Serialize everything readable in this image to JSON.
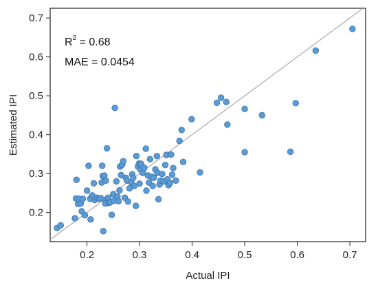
{
  "chart_data": {
    "type": "scatter",
    "xlabel": "Actual IPI",
    "ylabel": "Estimated IPI",
    "xlim": [
      0.13,
      0.73
    ],
    "ylim": [
      0.125,
      0.725
    ],
    "xticks": [
      0.2,
      0.3,
      0.4,
      0.5,
      0.6,
      0.7
    ],
    "yticks": [
      0.2,
      0.3,
      0.4,
      0.5,
      0.6,
      0.7
    ],
    "xtick_labels": [
      "0.2",
      "0.3",
      "0.4",
      "0.5",
      "0.6",
      "0.7"
    ],
    "ytick_labels": [
      "0.2",
      "0.3",
      "0.4",
      "0.5",
      "0.6",
      "0.7"
    ],
    "reference_line": "y = x",
    "grid": false,
    "marker_color": "#5b9bd5",
    "marker_edge_color": "#3a72a8",
    "line_color": "#9a9a9a",
    "annotations": {
      "r2_prefix": "R",
      "r2_superscript": "2",
      "r2_value": " = 0.68",
      "mae": "MAE = 0.0454"
    },
    "points": [
      [
        0.143,
        0.16
      ],
      [
        0.15,
        0.167
      ],
      [
        0.177,
        0.185
      ],
      [
        0.179,
        0.236
      ],
      [
        0.18,
        0.284
      ],
      [
        0.183,
        0.222
      ],
      [
        0.185,
        0.235
      ],
      [
        0.188,
        0.223
      ],
      [
        0.19,
        0.203
      ],
      [
        0.192,
        0.235
      ],
      [
        0.196,
        0.193
      ],
      [
        0.2,
        0.256
      ],
      [
        0.203,
        0.32
      ],
      [
        0.206,
        0.235
      ],
      [
        0.207,
        0.182
      ],
      [
        0.21,
        0.244
      ],
      [
        0.213,
        0.275
      ],
      [
        0.215,
        0.232
      ],
      [
        0.219,
        0.238
      ],
      [
        0.223,
        0.235
      ],
      [
        0.226,
        0.237
      ],
      [
        0.228,
        0.277
      ],
      [
        0.229,
        0.32
      ],
      [
        0.23,
        0.294
      ],
      [
        0.231,
        0.152
      ],
      [
        0.233,
        0.295
      ],
      [
        0.234,
        0.232
      ],
      [
        0.235,
        0.223
      ],
      [
        0.236,
        0.282
      ],
      [
        0.238,
        0.365
      ],
      [
        0.24,
        0.238
      ],
      [
        0.242,
        0.225
      ],
      [
        0.244,
        0.226
      ],
      [
        0.247,
        0.194
      ],
      [
        0.25,
        0.247
      ],
      [
        0.251,
        0.23
      ],
      [
        0.253,
        0.469
      ],
      [
        0.256,
        0.28
      ],
      [
        0.258,
        0.241
      ],
      [
        0.26,
        0.229
      ],
      [
        0.262,
        0.257
      ],
      [
        0.263,
        0.318
      ],
      [
        0.265,
        0.296
      ],
      [
        0.267,
        0.323
      ],
      [
        0.269,
        0.332
      ],
      [
        0.272,
        0.238
      ],
      [
        0.274,
        0.289
      ],
      [
        0.276,
        0.282
      ],
      [
        0.278,
        0.228
      ],
      [
        0.281,
        0.262
      ],
      [
        0.284,
        0.278
      ],
      [
        0.286,
        0.298
      ],
      [
        0.288,
        0.289
      ],
      [
        0.29,
        0.268
      ],
      [
        0.293,
        0.217
      ],
      [
        0.294,
        0.345
      ],
      [
        0.297,
        0.318
      ],
      [
        0.299,
        0.326
      ],
      [
        0.3,
        0.274
      ],
      [
        0.302,
        0.31
      ],
      [
        0.303,
        0.325
      ],
      [
        0.306,
        0.302
      ],
      [
        0.309,
        0.315
      ],
      [
        0.312,
        0.364
      ],
      [
        0.313,
        0.256
      ],
      [
        0.316,
        0.295
      ],
      [
        0.318,
        0.277
      ],
      [
        0.32,
        0.337
      ],
      [
        0.323,
        0.292
      ],
      [
        0.325,
        0.268
      ],
      [
        0.327,
        0.289
      ],
      [
        0.33,
        0.311
      ],
      [
        0.333,
        0.345
      ],
      [
        0.334,
        0.302
      ],
      [
        0.336,
        0.234
      ],
      [
        0.338,
        0.272
      ],
      [
        0.34,
        0.282
      ],
      [
        0.343,
        0.299
      ],
      [
        0.346,
        0.28
      ],
      [
        0.349,
        0.322
      ],
      [
        0.351,
        0.348
      ],
      [
        0.353,
        0.285
      ],
      [
        0.355,
        0.27
      ],
      [
        0.358,
        0.276
      ],
      [
        0.36,
        0.349
      ],
      [
        0.362,
        0.297
      ],
      [
        0.364,
        0.314
      ],
      [
        0.369,
        0.282
      ],
      [
        0.376,
        0.384
      ],
      [
        0.38,
        0.412
      ],
      [
        0.383,
        0.33
      ],
      [
        0.399,
        0.44
      ],
      [
        0.415,
        0.303
      ],
      [
        0.447,
        0.482
      ],
      [
        0.455,
        0.495
      ],
      [
        0.465,
        0.484
      ],
      [
        0.467,
        0.426
      ],
      [
        0.5,
        0.466
      ],
      [
        0.5,
        0.355
      ],
      [
        0.533,
        0.45
      ],
      [
        0.587,
        0.356
      ],
      [
        0.597,
        0.481
      ],
      [
        0.635,
        0.616
      ],
      [
        0.705,
        0.672
      ]
    ]
  }
}
